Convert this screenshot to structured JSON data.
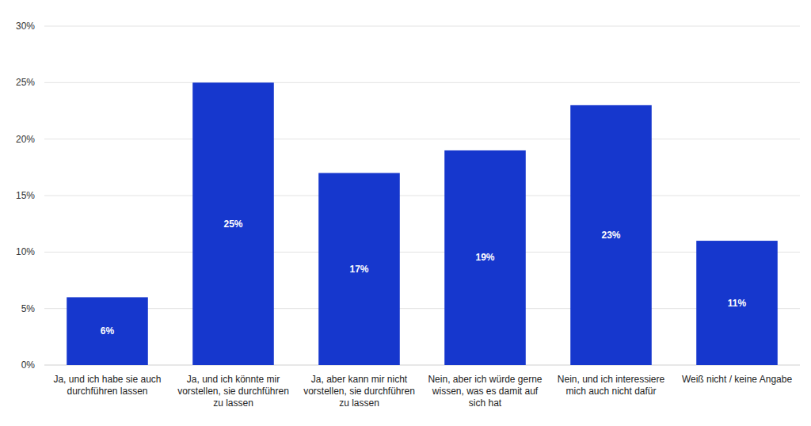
{
  "chart_data": {
    "type": "bar",
    "categories": [
      "Ja, und ich habe sie auch durchführen lassen",
      "Ja, und ich könnte mir vorstellen, sie durchführen zu lassen",
      "Ja, aber kann mir nicht vorstellen, sie durchführen zu lassen",
      "Nein, aber ich würde gerne wissen, was es damit auf sich hat",
      "Nein, und ich interessiere mich auch nicht dafür",
      "Weiß nicht / keine Angabe"
    ],
    "values": [
      6,
      25,
      17,
      19,
      23,
      11
    ],
    "value_labels": [
      "6%",
      "25%",
      "17%",
      "19%",
      "23%",
      "11%"
    ],
    "data_labels": true,
    "color": "#1637cd",
    "ylim": [
      0,
      30
    ],
    "yticks": [
      {
        "value": 0,
        "label": "0%"
      },
      {
        "value": 5,
        "label": "5%"
      },
      {
        "value": 10,
        "label": "10%"
      },
      {
        "value": 15,
        "label": "15%"
      },
      {
        "value": 20,
        "label": "20%"
      },
      {
        "value": 25,
        "label": "25%"
      },
      {
        "value": 30,
        "label": "30%"
      }
    ],
    "grid": true
  }
}
